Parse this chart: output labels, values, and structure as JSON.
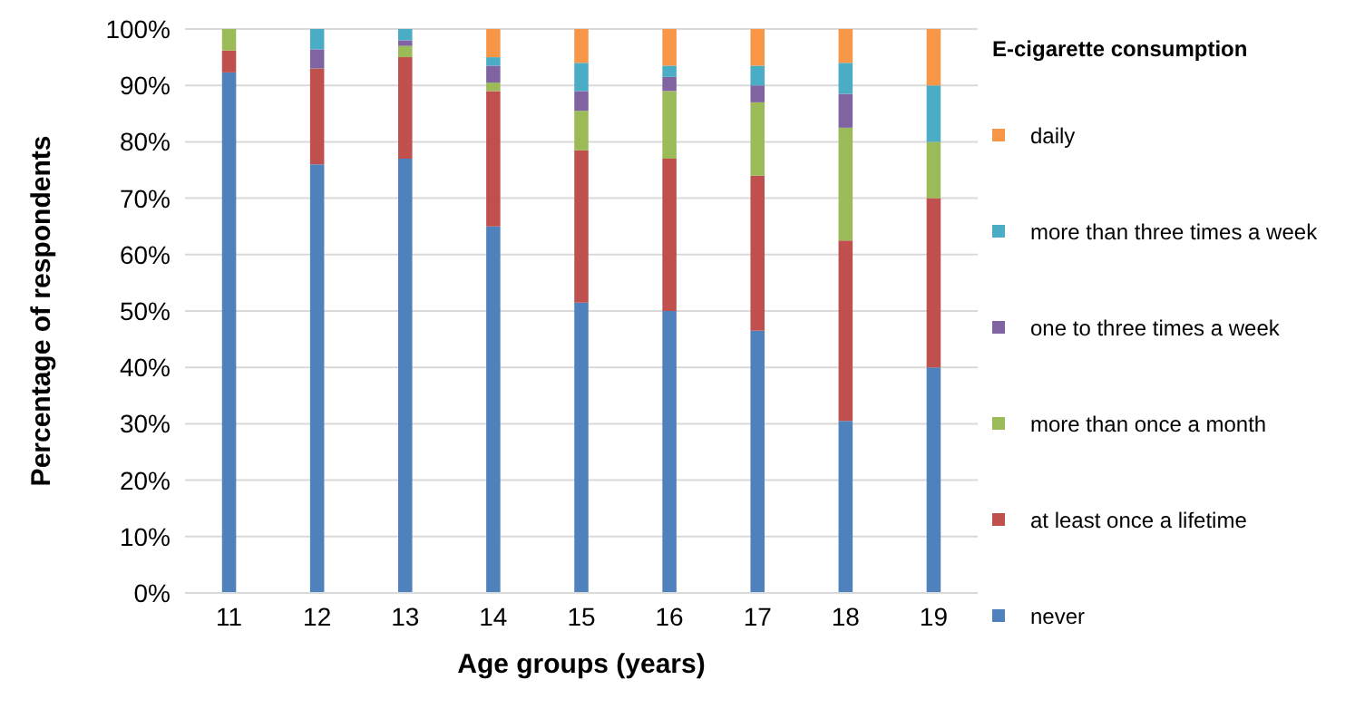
{
  "chart_data": {
    "type": "bar",
    "stacked": true,
    "xlabel": "Age groups (years)",
    "ylabel": "Percentage of respondents",
    "legend_title": "E-cigarette consumption",
    "categories": [
      "11",
      "12",
      "13",
      "14",
      "15",
      "16",
      "17",
      "18",
      "19"
    ],
    "series": [
      {
        "name": "never",
        "color": "#4f81bd",
        "values": [
          92.3,
          76,
          77,
          65,
          51.5,
          50,
          46.5,
          30.5,
          40
        ]
      },
      {
        "name": "at least once a lifetime",
        "color": "#c0504d",
        "values": [
          3.9,
          17,
          18,
          24,
          27,
          27,
          27.5,
          32,
          30
        ]
      },
      {
        "name": "more than once a month",
        "color": "#9bbb59",
        "values": [
          3.8,
          0,
          2,
          1.5,
          7,
          12,
          13,
          20,
          10
        ]
      },
      {
        "name": "one to three times a week",
        "color": "#8064a2",
        "values": [
          0,
          3.4,
          1,
          3,
          3.5,
          2.5,
          3,
          6,
          0
        ]
      },
      {
        "name": "more than three times a week",
        "color": "#4bacc6",
        "values": [
          0,
          3.6,
          2,
          1.5,
          5,
          2,
          3.5,
          5.5,
          10
        ]
      },
      {
        "name": "daily",
        "color": "#f79646",
        "values": [
          0,
          0,
          0,
          5,
          6,
          6.5,
          6.5,
          6,
          10
        ]
      }
    ],
    "ylim": [
      0,
      100
    ],
    "yticks": [
      {
        "value": 0,
        "label": "0%"
      },
      {
        "value": 10,
        "label": "10%"
      },
      {
        "value": 20,
        "label": "20%"
      },
      {
        "value": 30,
        "label": "30%"
      },
      {
        "value": 40,
        "label": "40%"
      },
      {
        "value": 50,
        "label": "50%"
      },
      {
        "value": 60,
        "label": "60%"
      },
      {
        "value": 70,
        "label": "70%"
      },
      {
        "value": 80,
        "label": "80%"
      },
      {
        "value": 90,
        "label": "90%"
      },
      {
        "value": 100,
        "label": "100%"
      }
    ],
    "grid": "y",
    "legend": "right"
  }
}
